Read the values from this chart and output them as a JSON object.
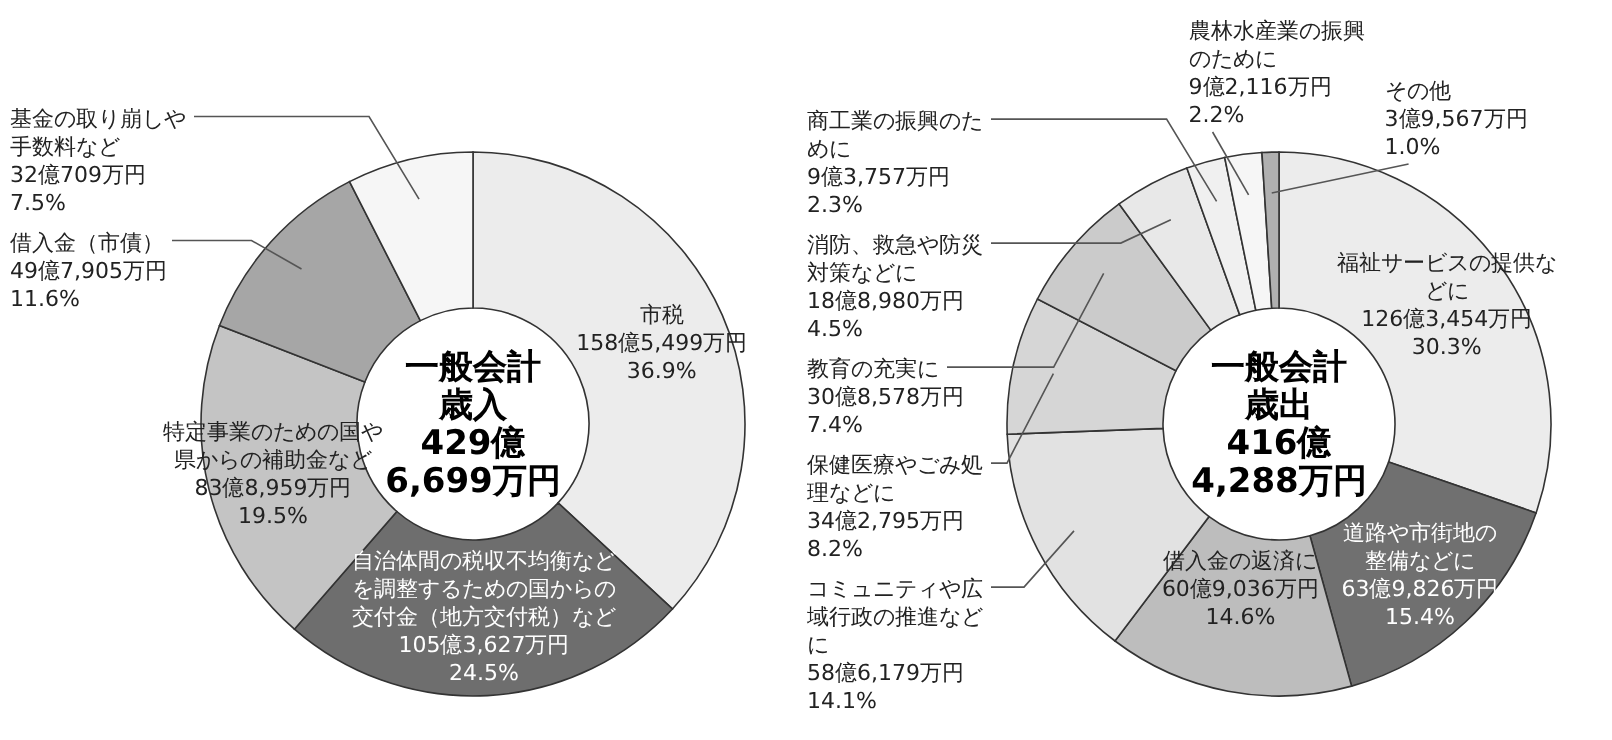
{
  "chart_data": [
    {
      "type": "donut",
      "title": "一般会計歳入",
      "subtitle": "429億6,699万円",
      "categories": [
        "市税",
        "自治体間の税収不均衡などを調整するための国からの交付金（地方交付税）など",
        "特定事業のための国や県からの補助金など",
        "借入金（市債）",
        "基金の取り崩しや手数料など"
      ],
      "values": [
        36.9,
        24.5,
        19.5,
        11.6,
        7.5
      ],
      "value_labels": [
        "158億5,499万円\n36.9%",
        "105億3,627万円\n24.5%",
        "83億8,959万円\n19.5%",
        "49億7,905万円\n11.6%",
        "32億709万円\n7.5%"
      ],
      "colors": [
        "#ececec",
        "#6e6e6e",
        "#c4c4c4",
        "#a6a6a6",
        "#f6f6f6"
      ]
    },
    {
      "type": "donut",
      "title": "一般会計歳出",
      "subtitle": "416億4,288万円",
      "categories": [
        "福祉サービスの提供などに",
        "道路や市街地の整備などに",
        "借入金の返済に",
        "コミュニティや広域行政の推進などに",
        "保健医療やごみ処理などに",
        "教育の充実に",
        "消防、救急や防災対策などに",
        "商工業の振興のために",
        "農林水産業の振興のために",
        "その他"
      ],
      "values": [
        30.3,
        15.4,
        14.6,
        14.1,
        8.2,
        7.4,
        4.5,
        2.3,
        2.2,
        1.0
      ],
      "value_labels": [
        "126億3,454万円\n30.3%",
        "63億9,826万円\n15.4%",
        "60億9,036万円\n14.6%",
        "58億6,179万円\n14.1%",
        "34億2,795万円\n8.2%",
        "30億8,578万円\n7.4%",
        "18億8,980万円\n4.5%",
        "9億3,757万円\n2.3%",
        "9億2,116万円\n2.2%",
        "3億9,567万円\n1.0%"
      ],
      "colors": [
        "#ececec",
        "#707070",
        "#bdbdbd",
        "#e2e2e2",
        "#d6d6d6",
        "#cbcbcb",
        "#e8e8e8",
        "#f0f0f0",
        "#f6f6f6",
        "#b0b0b0"
      ]
    }
  ]
}
